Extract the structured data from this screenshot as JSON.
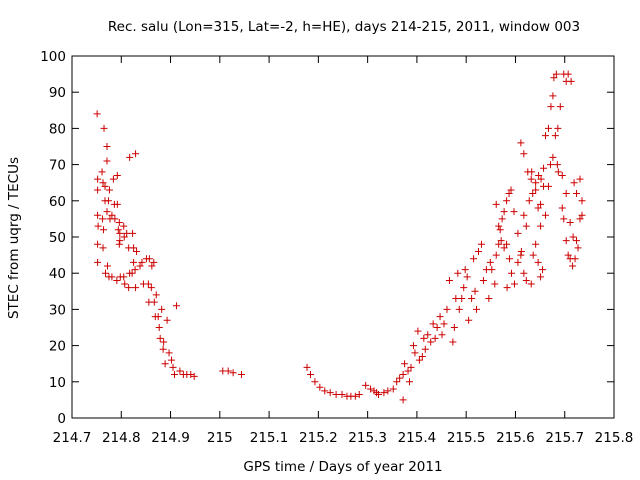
{
  "chart_data": {
    "type": "scatter",
    "title": "Rec. salu (Lon=315, Lat=-2, h=HE), days 214-215, 2011, window 003",
    "xlabel": "GPS time / Days of year 2011",
    "ylabel": "STEC from uqrg / TECUs",
    "xlim": [
      214.7,
      215.8
    ],
    "ylim": [
      0,
      100
    ],
    "x_ticks": [
      214.7,
      214.8,
      214.9,
      215,
      215.1,
      215.2,
      215.3,
      215.4,
      215.5,
      215.6,
      215.7,
      215.8
    ],
    "y_ticks": [
      0,
      10,
      20,
      30,
      40,
      50,
      60,
      70,
      80,
      90,
      100
    ],
    "x_tick_labels": [
      "214.7",
      "214.8",
      "214.9",
      "215",
      "215.1",
      "215.2",
      "215.3",
      "215.4",
      "215.5",
      "215.6",
      "215.7",
      "215.8"
    ],
    "y_tick_labels": [
      "0",
      "10",
      "20",
      "30",
      "40",
      "50",
      "60",
      "70",
      "80",
      "90",
      "100"
    ],
    "grid": false,
    "legend": "none",
    "marker": "+",
    "color": "#cc0000",
    "points": [
      [
        214.751,
        84
      ],
      [
        214.765,
        80
      ],
      [
        214.771,
        75
      ],
      [
        214.771,
        71
      ],
      [
        214.752,
        66
      ],
      [
        214.761,
        68
      ],
      [
        214.763,
        65
      ],
      [
        214.767,
        64
      ],
      [
        214.752,
        63
      ],
      [
        214.784,
        66
      ],
      [
        214.792,
        67
      ],
      [
        214.776,
        63
      ],
      [
        214.767,
        60
      ],
      [
        214.774,
        60
      ],
      [
        214.786,
        59
      ],
      [
        214.792,
        59
      ],
      [
        214.771,
        57
      ],
      [
        214.781,
        56
      ],
      [
        214.777,
        55
      ],
      [
        214.752,
        56
      ],
      [
        214.762,
        55
      ],
      [
        214.787,
        55
      ],
      [
        214.753,
        53
      ],
      [
        214.764,
        52
      ],
      [
        214.796,
        54
      ],
      [
        214.805,
        53
      ],
      [
        214.794,
        52
      ],
      [
        214.797,
        51
      ],
      [
        214.806,
        50
      ],
      [
        214.797,
        49
      ],
      [
        214.811,
        51
      ],
      [
        214.796,
        48
      ],
      [
        214.752,
        48
      ],
      [
        214.763,
        47
      ],
      [
        214.815,
        47
      ],
      [
        214.823,
        51
      ],
      [
        214.825,
        47
      ],
      [
        214.831,
        46
      ],
      [
        214.752,
        43
      ],
      [
        214.772,
        42
      ],
      [
        214.768,
        40
      ],
      [
        214.775,
        39
      ],
      [
        214.781,
        39
      ],
      [
        214.791,
        38
      ],
      [
        214.798,
        39
      ],
      [
        214.805,
        39
      ],
      [
        214.807,
        37
      ],
      [
        214.815,
        36
      ],
      [
        214.817,
        40
      ],
      [
        214.822,
        40
      ],
      [
        214.825,
        43
      ],
      [
        214.828,
        41
      ],
      [
        214.829,
        36
      ],
      [
        214.838,
        42
      ],
      [
        214.842,
        43
      ],
      [
        214.845,
        37
      ],
      [
        214.851,
        44
      ],
      [
        214.855,
        37
      ],
      [
        214.857,
        44
      ],
      [
        214.856,
        32
      ],
      [
        214.861,
        36
      ],
      [
        214.862,
        42
      ],
      [
        214.866,
        43
      ],
      [
        214.867,
        32
      ],
      [
        214.869,
        28
      ],
      [
        214.871,
        34
      ],
      [
        214.875,
        28
      ],
      [
        214.877,
        25
      ],
      [
        214.879,
        22
      ],
      [
        214.882,
        30
      ],
      [
        214.885,
        19
      ],
      [
        214.886,
        21
      ],
      [
        214.889,
        15
      ],
      [
        214.893,
        27
      ],
      [
        214.897,
        18
      ],
      [
        214.902,
        16
      ],
      [
        214.905,
        14
      ],
      [
        214.908,
        12
      ],
      [
        214.912,
        31
      ],
      [
        214.919,
        13
      ],
      [
        214.926,
        12
      ],
      [
        214.933,
        12
      ],
      [
        214.941,
        12
      ],
      [
        214.948,
        11.5
      ],
      [
        214.817,
        72
      ],
      [
        214.829,
        73
      ],
      [
        215.006,
        13
      ],
      [
        215.017,
        13
      ],
      [
        215.027,
        12.5
      ],
      [
        215.044,
        12
      ],
      [
        215.177,
        14
      ],
      [
        215.184,
        12
      ],
      [
        215.193,
        10
      ],
      [
        215.203,
        8.5
      ],
      [
        215.213,
        7.5
      ],
      [
        215.224,
        7
      ],
      [
        215.236,
        6.5
      ],
      [
        215.248,
        6.5
      ],
      [
        215.258,
        6
      ],
      [
        215.266,
        6
      ],
      [
        215.275,
        6
      ],
      [
        215.283,
        6.5
      ],
      [
        215.296,
        9
      ],
      [
        215.306,
        8
      ],
      [
        215.313,
        7.5
      ],
      [
        215.318,
        7
      ],
      [
        215.322,
        6.5
      ],
      [
        215.333,
        7
      ],
      [
        215.341,
        7.5
      ],
      [
        215.352,
        8
      ],
      [
        215.359,
        10
      ],
      [
        215.365,
        11
      ],
      [
        215.372,
        5
      ],
      [
        215.372,
        12
      ],
      [
        215.375,
        15
      ],
      [
        215.382,
        13
      ],
      [
        215.385,
        10
      ],
      [
        215.388,
        14
      ],
      [
        215.393,
        20
      ],
      [
        215.396,
        18
      ],
      [
        215.402,
        24
      ],
      [
        215.405,
        16
      ],
      [
        215.411,
        17
      ],
      [
        215.414,
        22
      ],
      [
        215.417,
        19
      ],
      [
        215.422,
        23
      ],
      [
        215.428,
        21
      ],
      [
        215.433,
        26
      ],
      [
        215.437,
        22
      ],
      [
        215.441,
        25
      ],
      [
        215.447,
        28
      ],
      [
        215.451,
        23
      ],
      [
        215.455,
        26
      ],
      [
        215.461,
        30
      ],
      [
        215.466,
        38
      ],
      [
        215.473,
        21
      ],
      [
        215.476,
        25
      ],
      [
        215.479,
        33
      ],
      [
        215.483,
        40
      ],
      [
        215.486,
        30
      ],
      [
        215.491,
        33
      ],
      [
        215.495,
        36
      ],
      [
        215.498,
        41
      ],
      [
        215.502,
        39
      ],
      [
        215.505,
        27
      ],
      [
        215.511,
        33
      ],
      [
        215.515,
        44
      ],
      [
        215.518,
        35
      ],
      [
        215.521,
        30
      ],
      [
        215.525,
        46
      ],
      [
        215.531,
        48
      ],
      [
        215.535,
        38
      ],
      [
        215.541,
        41
      ],
      [
        215.546,
        33
      ],
      [
        215.549,
        43
      ],
      [
        215.552,
        41
      ],
      [
        215.558,
        37
      ],
      [
        215.561,
        45
      ],
      [
        215.566,
        48
      ],
      [
        215.569,
        52
      ],
      [
        215.573,
        55
      ],
      [
        215.577,
        57
      ],
      [
        215.582,
        60
      ],
      [
        215.583,
        36
      ],
      [
        215.587,
        62
      ],
      [
        215.591,
        63
      ],
      [
        215.597,
        57
      ],
      [
        215.605,
        51
      ],
      [
        215.612,
        46
      ],
      [
        215.617,
        40
      ],
      [
        215.622,
        38
      ],
      [
        215.632,
        37
      ],
      [
        215.636,
        45
      ],
      [
        215.641,
        48
      ],
      [
        215.646,
        43
      ],
      [
        215.651,
        39
      ],
      [
        215.655,
        41
      ],
      [
        215.661,
        56
      ],
      [
        215.667,
        64
      ],
      [
        215.671,
        70
      ],
      [
        215.676,
        72
      ],
      [
        215.681,
        78
      ],
      [
        215.685,
        70
      ],
      [
        215.687,
        68
      ],
      [
        215.695,
        58
      ],
      [
        215.698,
        55
      ],
      [
        215.703,
        49
      ],
      [
        215.707,
        45
      ],
      [
        215.711,
        44
      ],
      [
        215.716,
        42
      ],
      [
        215.721,
        44
      ],
      [
        215.727,
        47
      ],
      [
        215.731,
        55
      ],
      [
        215.735,
        60
      ],
      [
        215.633,
        68
      ],
      [
        215.646,
        58
      ],
      [
        215.651,
        53
      ],
      [
        215.657,
        64
      ],
      [
        215.661,
        78
      ],
      [
        215.667,
        80
      ],
      [
        215.672,
        86
      ],
      [
        215.676,
        89
      ],
      [
        215.678,
        94
      ],
      [
        215.683,
        95
      ],
      [
        215.686,
        80
      ],
      [
        215.691,
        86
      ],
      [
        215.698,
        95
      ],
      [
        215.703,
        93
      ],
      [
        215.707,
        95
      ],
      [
        215.713,
        93
      ],
      [
        215.719,
        65
      ],
      [
        215.724,
        62
      ],
      [
        215.731,
        66
      ],
      [
        215.735,
        56
      ],
      [
        215.611,
        76
      ],
      [
        215.617,
        73
      ],
      [
        215.625,
        68
      ],
      [
        215.632,
        66
      ],
      [
        215.641,
        63
      ],
      [
        215.651,
        59
      ],
      [
        215.561,
        59
      ],
      [
        215.566,
        53
      ],
      [
        215.571,
        49
      ],
      [
        215.577,
        47
      ],
      [
        215.582,
        48
      ],
      [
        215.588,
        44
      ],
      [
        215.592,
        40
      ],
      [
        215.598,
        37
      ],
      [
        215.605,
        43
      ],
      [
        215.611,
        45
      ],
      [
        215.617,
        56
      ],
      [
        215.622,
        53
      ],
      [
        215.628,
        60
      ],
      [
        215.635,
        62
      ],
      [
        215.641,
        65
      ],
      [
        215.647,
        67
      ],
      [
        215.652,
        66
      ],
      [
        215.657,
        69
      ],
      [
        215.695,
        67
      ],
      [
        215.703,
        62
      ],
      [
        215.711,
        54
      ],
      [
        215.717,
        50
      ],
      [
        215.724,
        49
      ]
    ]
  }
}
